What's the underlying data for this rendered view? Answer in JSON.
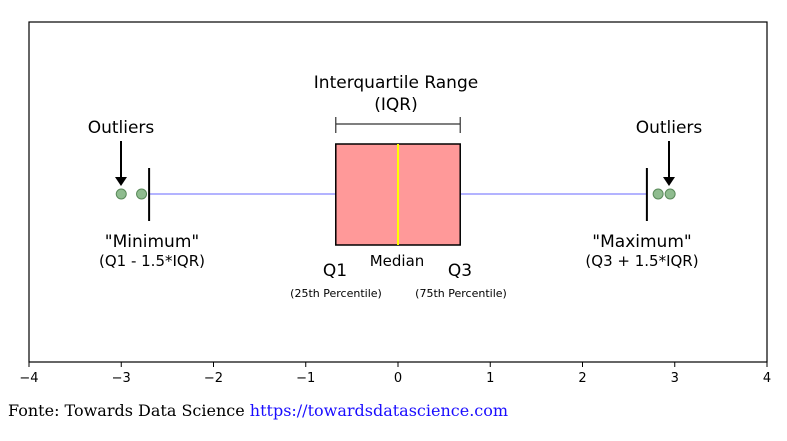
{
  "chart_data": {
    "type": "box",
    "q1": -0.6745,
    "median": 0.0,
    "q3": 0.6745,
    "whisker_low": -2.698,
    "whisker_high": 2.698,
    "outliers": [
      -3.0,
      -2.78,
      2.82,
      2.95
    ],
    "xlim": [
      -4,
      4
    ],
    "xticks": [
      -4,
      -3,
      -2,
      -1,
      0,
      1,
      2,
      3,
      4
    ],
    "xtick_labels": [
      "−4",
      "−3",
      "−2",
      "−1",
      "0",
      "1",
      "2",
      "3",
      "4"
    ],
    "annotations": {
      "iqr_line1": "Interquartile Range",
      "iqr_line2": "(IQR)",
      "outliers_left": "Outliers",
      "outliers_right": "Outliers",
      "minimum": "\"Minimum\"",
      "minimum_formula": "(Q1 - 1.5*IQR)",
      "maximum": "\"Maximum\"",
      "maximum_formula": "(Q3 + 1.5*IQR)",
      "q1": "Q1",
      "q1_desc": "(25th Percentile)",
      "median": "Median",
      "q3": "Q3",
      "q3_desc": "(75th Percentile)"
    },
    "colors": {
      "box_fill": "#ff9999",
      "box_edge": "#000000",
      "median": "#ffff00",
      "whisker": "#b3b3ff",
      "outlier_fill": "#8fbc8f",
      "outlier_edge": "#5a8a5a"
    }
  },
  "caption": {
    "prefix": "Fonte: Towards Data Science ",
    "link": "https://towardsdatascience.com"
  }
}
